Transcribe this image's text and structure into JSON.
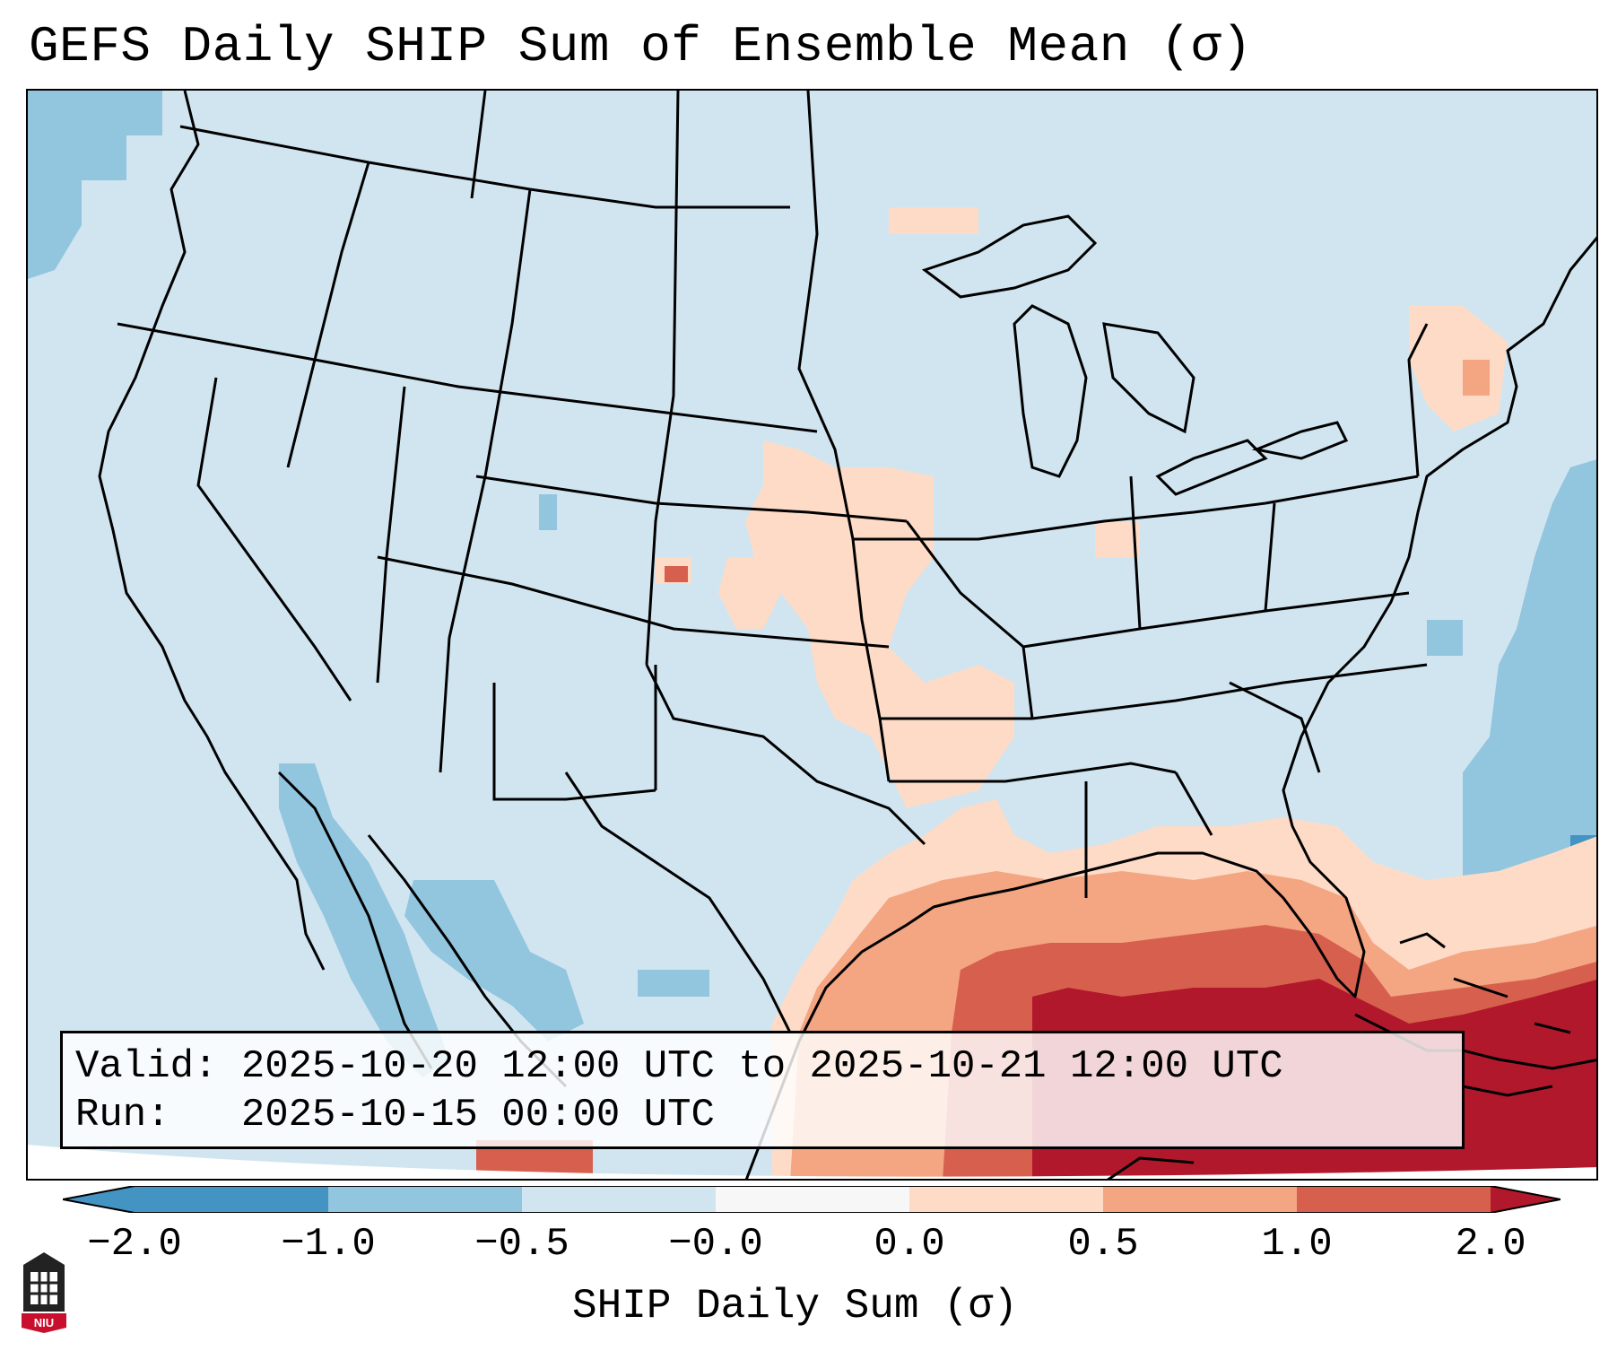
{
  "title": "GEFS Daily SHIP Sum of Ensemble Mean (σ)",
  "info": {
    "valid_label": "Valid:",
    "valid_value": "2025-10-20 12:00 UTC to 2025-10-21 12:00 UTC",
    "run_label": "Run:",
    "run_value": "2025-10-15 00:00 UTC"
  },
  "colorbar": {
    "label": "SHIP Daily Sum (σ)",
    "ticks": [
      "−2.0",
      "−1.0",
      "−0.5",
      "−0.0",
      "0.0",
      "0.5",
      "1.0",
      "2.0"
    ],
    "colors": [
      "#4393c3",
      "#92c5de",
      "#d1e5f0",
      "#f7f7f7",
      "#fddbc7",
      "#f4a582",
      "#d6604d",
      "#b2182b"
    ]
  },
  "logo": {
    "text": "NIU"
  }
}
